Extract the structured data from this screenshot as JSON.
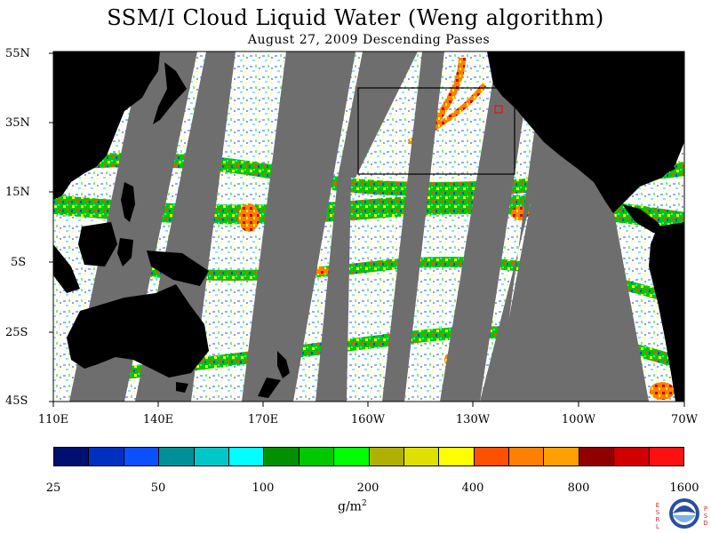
{
  "title": "SSM/I Cloud Liquid Water (Weng algorithm)",
  "subtitle": "August 27, 2009  Descending Passes",
  "lat_labels": [
    "55N",
    "35N",
    "15N",
    "5S",
    "25S",
    "45S"
  ],
  "lon_labels": [
    "110E",
    "140E",
    "170E",
    "160W",
    "130W",
    "100W",
    "70W"
  ],
  "colorbar": {
    "colors": [
      "#001070",
      "#0030c0",
      "#0a50ff",
      "#00909a",
      "#00c8c8",
      "#00ffff",
      "#009000",
      "#00c800",
      "#00ff00",
      "#b0b000",
      "#e0e000",
      "#ffff00",
      "#ff5000",
      "#ff8000",
      "#ffa000",
      "#900000",
      "#d00000",
      "#ff1010"
    ],
    "tick_labels": [
      "25",
      "50",
      "100",
      "200",
      "400",
      "800",
      "1600"
    ],
    "units": "g/m",
    "units_sup": "2"
  },
  "colors": {
    "land": "#000000",
    "no_data_gap": "#6e6e6e",
    "ocean_background": "#ffffff",
    "box_outline": "#000000",
    "marker": "#ff0000"
  },
  "logo": {
    "left_letters": [
      "E",
      "S",
      "R",
      "L"
    ],
    "right_letters": [
      "P",
      "S",
      "D"
    ],
    "emblem": "NOAA"
  }
}
